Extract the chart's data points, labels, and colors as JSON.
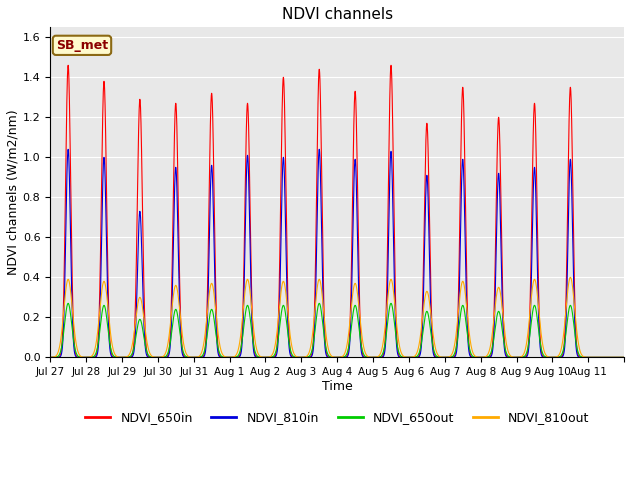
{
  "title": "NDVI channels",
  "ylabel": "NDVI channels (W/m2/nm)",
  "xlabel": "Time",
  "annotation": "SB_met",
  "ylim": [
    0,
    1.65
  ],
  "legend_labels": [
    "NDVI_650in",
    "NDVI_810in",
    "NDVI_650out",
    "NDVI_810out"
  ],
  "legend_colors": [
    "#ff0000",
    "#0000dd",
    "#00cc00",
    "#ffaa00"
  ],
  "bg_color": "#e8e8e8",
  "num_days": 16,
  "peaks_650in": [
    1.46,
    1.38,
    1.29,
    1.27,
    1.32,
    1.27,
    1.4,
    1.44,
    1.33,
    1.46,
    1.17,
    1.35,
    1.2,
    1.27,
    1.35,
    0.0
  ],
  "peaks_810in": [
    1.04,
    1.0,
    0.73,
    0.95,
    0.96,
    1.01,
    1.0,
    1.04,
    0.99,
    1.03,
    0.91,
    0.99,
    0.92,
    0.95,
    0.99,
    0.0
  ],
  "peaks_650out": [
    0.27,
    0.26,
    0.19,
    0.24,
    0.24,
    0.26,
    0.26,
    0.27,
    0.26,
    0.27,
    0.23,
    0.26,
    0.23,
    0.26,
    0.26,
    0.0
  ],
  "peaks_810out": [
    0.39,
    0.38,
    0.3,
    0.36,
    0.37,
    0.39,
    0.38,
    0.39,
    0.37,
    0.39,
    0.33,
    0.38,
    0.35,
    0.39,
    0.4,
    0.0
  ],
  "tick_labels": [
    "Jul 27",
    "Jul 28",
    "Jul 29",
    "Jul 30",
    "Jul 31",
    "Aug 1",
    "Aug 2",
    "Aug 3",
    "Aug 4",
    "Aug 5",
    "Aug 6",
    "Aug 7",
    "Aug 8",
    "Aug 9",
    "Aug 10",
    "Aug 11"
  ],
  "figsize": [
    6.4,
    4.8
  ],
  "dpi": 100
}
